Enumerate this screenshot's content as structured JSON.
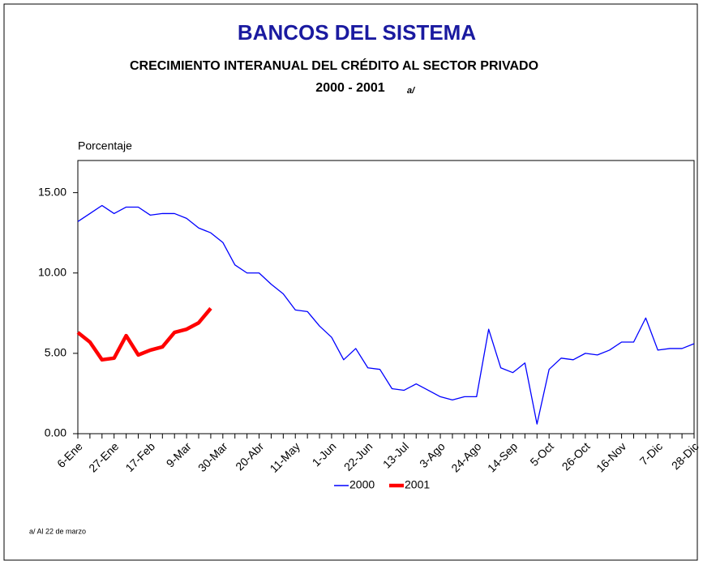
{
  "chart_data": {
    "type": "line",
    "title": "BANCOS DEL SISTEMA",
    "subtitle": "CRECIMIENTO INTERANUAL DEL CRÉDITO AL SECTOR PRIVADO",
    "period": "2000 - 2001",
    "period_note": "a/",
    "y_label": "Porcentaje",
    "footnote": "a/ Al  22 de marzo",
    "categories": [
      "6-Ene",
      null,
      null,
      "27-Ene",
      null,
      null,
      "17-Feb",
      null,
      null,
      "9-Mar",
      null,
      null,
      "30-Mar",
      null,
      null,
      "20-Abr",
      null,
      null,
      "11-May",
      null,
      null,
      "1-Jun",
      null,
      null,
      "22-Jun",
      null,
      null,
      "13-Jul",
      null,
      null,
      "3-Ago",
      null,
      null,
      "24-Ago",
      null,
      null,
      "14-Sep",
      null,
      null,
      "5-Oct",
      null,
      null,
      "26-Oct",
      null,
      null,
      "16-Nov",
      null,
      null,
      "7-Dic",
      null,
      null,
      "28-Dic"
    ],
    "series": [
      {
        "name": "2000",
        "color": "#0000ff",
        "values": [
          13.2,
          13.7,
          14.2,
          13.7,
          14.1,
          14.1,
          13.6,
          13.7,
          13.7,
          13.4,
          12.8,
          12.5,
          11.9,
          10.5,
          10.0,
          10.0,
          9.3,
          8.7,
          7.7,
          7.6,
          6.7,
          6.0,
          4.6,
          5.3,
          4.1,
          4.0,
          2.8,
          2.7,
          3.1,
          2.7,
          2.3,
          2.1,
          2.3,
          2.3,
          6.5,
          4.1,
          3.8,
          4.4,
          0.6,
          4.0,
          4.7,
          4.6,
          5.0,
          4.9,
          5.2,
          5.7,
          5.7,
          7.2,
          5.2,
          5.3,
          5.3,
          5.6
        ]
      },
      {
        "name": "2001",
        "color": "#ff0000",
        "values": [
          6.3,
          5.7,
          4.6,
          4.7,
          6.1,
          4.9,
          5.2,
          5.4,
          6.3,
          6.5,
          6.9,
          7.8,
          null,
          null,
          null,
          null,
          null,
          null,
          null,
          null,
          null,
          null,
          null,
          null,
          null,
          null,
          null,
          null,
          null,
          null,
          null,
          null,
          null,
          null,
          null,
          null,
          null,
          null,
          null,
          null,
          null,
          null,
          null,
          null,
          null,
          null,
          null,
          null,
          null,
          null,
          null,
          null
        ]
      }
    ],
    "ylim": [
      0,
      17
    ],
    "yticks": [
      {
        "value": 0,
        "label": "0.00"
      },
      {
        "value": 5,
        "label": "5.00"
      },
      {
        "value": 10,
        "label": "10.00"
      },
      {
        "value": 15,
        "label": "15.00"
      }
    ],
    "legend": "bottom"
  }
}
